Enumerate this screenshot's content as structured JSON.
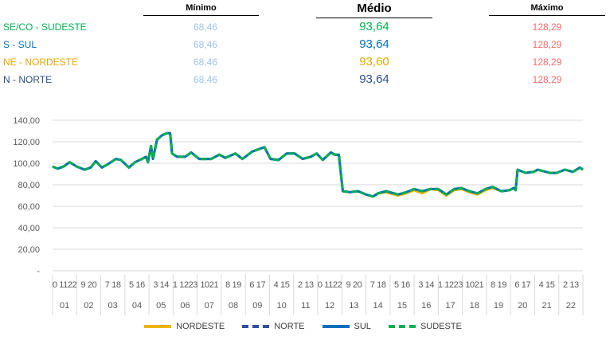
{
  "summary": {
    "headers": {
      "min": "Mínimo",
      "avg": "Médio",
      "max": "Máximo"
    },
    "rows": [
      {
        "label": "SE/CO - SUDESTE",
        "color": "#00B050",
        "min": "68,46",
        "avg": "93,64",
        "max": "128,29"
      },
      {
        "label": "S - SUL",
        "color": "#0070C0",
        "min": "68,46",
        "avg": "93,64",
        "max": "128,29"
      },
      {
        "label": "NE - NORDESTE",
        "color": "#E8A800",
        "min": "68,46",
        "avg": "93,60",
        "max": "128,29"
      },
      {
        "label": "N - NORTE",
        "color": "#2F4F8F",
        "min": "68,46",
        "avg": "93,64",
        "max": "128,29"
      }
    ],
    "min_color": "#9DC3E6",
    "max_color": "#FF6B6B"
  },
  "chart_data": {
    "type": "line",
    "title": "",
    "xlabel": "",
    "ylabel": "",
    "ylim": [
      0,
      140
    ],
    "y_ticks": [
      "-",
      "20,00",
      "40,00",
      "60,00",
      "80,00",
      "100,00",
      "120,00",
      "140,00"
    ],
    "grid": true,
    "legend_position": "bottom",
    "x_unit": "hours since start of day 01",
    "x_range": [
      0,
      528
    ],
    "day_groups": [
      "01",
      "02",
      "03",
      "04",
      "05",
      "06",
      "07",
      "08",
      "09",
      "10",
      "11",
      "12",
      "13",
      "14",
      "15",
      "16",
      "17",
      "18",
      "19",
      "20",
      "21",
      "22"
    ],
    "hour_ticks": [
      "0 1122",
      "9 20",
      "7 18",
      "5 16",
      "3 14",
      "1 1223",
      "1021",
      "8 19",
      "6 17",
      "4 15",
      "2 13",
      "0 1122",
      "9 20",
      "7 18",
      "5 16",
      "3 14",
      "1 1223",
      "1021",
      "8 19",
      "6 17",
      "4 15",
      "2 13"
    ],
    "x": [
      0,
      5,
      11,
      17,
      24,
      32,
      38,
      43,
      49,
      55,
      63,
      68,
      76,
      82,
      89,
      93,
      95,
      98,
      100,
      104,
      109,
      114,
      117,
      119,
      124,
      132,
      138,
      146,
      158,
      166,
      172,
      182,
      189,
      199,
      211,
      217,
      225,
      233,
      241,
      249,
      257,
      263,
      269,
      277,
      281,
      285,
      289,
      296,
      304,
      312,
      319,
      324,
      332,
      344,
      352,
      360,
      368,
      376,
      384,
      392,
      400,
      407,
      415,
      423,
      431,
      438,
      447,
      455,
      459,
      461,
      463,
      471,
      479,
      483,
      495,
      502,
      510,
      518,
      525,
      528
    ],
    "series": [
      {
        "name": "NORDESTE",
        "color": "#F0B400",
        "dash": false,
        "values": [
          97,
          95,
          97,
          101,
          97,
          94,
          96,
          102,
          96,
          99,
          104,
          103,
          96,
          101,
          104,
          106,
          101,
          116,
          104,
          122,
          126,
          128,
          128,
          109,
          106,
          106,
          110,
          104,
          104,
          108,
          105,
          109,
          104,
          111,
          115,
          104,
          103,
          109,
          109,
          104,
          106,
          109,
          103,
          110,
          108,
          108,
          74,
          73,
          74,
          71,
          69,
          72,
          73,
          70,
          72,
          75,
          72,
          76,
          75,
          70,
          75,
          76,
          73,
          71,
          75,
          77,
          74,
          75,
          77,
          75,
          94,
          91,
          92,
          94,
          91,
          91,
          94,
          92,
          96,
          94
        ]
      },
      {
        "name": "NORTE",
        "color": "#2F4F9F",
        "dash": true,
        "values": [
          97,
          95,
          97,
          101,
          97,
          94,
          96,
          102,
          96,
          99,
          104,
          103,
          96,
          101,
          104,
          106,
          101,
          116,
          104,
          122,
          126,
          128,
          128,
          109,
          106,
          106,
          110,
          104,
          104,
          108,
          105,
          109,
          104,
          111,
          115,
          104,
          103,
          109,
          109,
          104,
          106,
          109,
          103,
          110,
          108,
          108,
          74,
          73,
          74,
          71,
          69,
          72,
          74,
          71,
          73,
          76,
          74,
          76,
          76,
          71,
          76,
          77,
          74,
          72,
          76,
          78,
          74,
          75,
          77,
          75,
          94,
          91,
          92,
          94,
          91,
          91,
          94,
          92,
          96,
          94
        ]
      },
      {
        "name": "SUL",
        "color": "#0070C0",
        "dash": false,
        "values": [
          97,
          95,
          97,
          101,
          97,
          94,
          96,
          102,
          96,
          99,
          104,
          103,
          96,
          101,
          104,
          106,
          101,
          116,
          104,
          122,
          126,
          128,
          128,
          109,
          106,
          106,
          110,
          104,
          104,
          108,
          105,
          109,
          104,
          111,
          115,
          104,
          103,
          109,
          109,
          104,
          106,
          109,
          103,
          110,
          108,
          108,
          74,
          73,
          74,
          71,
          69,
          72,
          74,
          71,
          73,
          76,
          74,
          76,
          76,
          71,
          76,
          77,
          74,
          72,
          76,
          78,
          74,
          75,
          77,
          75,
          94,
          91,
          92,
          94,
          91,
          91,
          94,
          92,
          96,
          94
        ]
      },
      {
        "name": "SUDESTE",
        "color": "#00B050",
        "dash": true,
        "values": [
          97,
          95,
          97,
          101,
          97,
          94,
          96,
          102,
          96,
          99,
          104,
          103,
          96,
          101,
          104,
          106,
          101,
          116,
          104,
          122,
          126,
          128,
          128,
          109,
          106,
          106,
          110,
          104,
          104,
          108,
          105,
          109,
          104,
          111,
          115,
          104,
          103,
          109,
          109,
          104,
          106,
          109,
          103,
          110,
          108,
          108,
          74,
          73,
          74,
          71,
          69,
          72,
          74,
          71,
          73,
          76,
          74,
          76,
          76,
          71,
          76,
          77,
          74,
          72,
          76,
          78,
          74,
          75,
          77,
          75,
          94,
          91,
          92,
          94,
          91,
          91,
          94,
          92,
          96,
          94
        ]
      }
    ]
  }
}
